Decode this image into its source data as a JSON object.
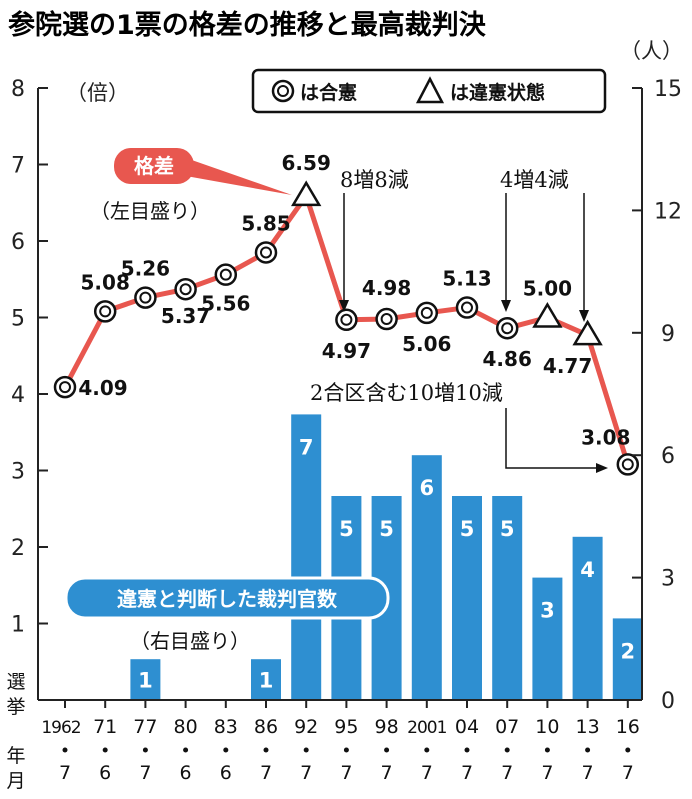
{
  "title": "参院選の1票の格差の推移と最高裁判決",
  "legend": {
    "gokan": "は合憲",
    "iken": "は違憲状態"
  },
  "left_axis": {
    "unit": "（倍）",
    "note": "（左目盛り）",
    "tag": "格差",
    "ticks": [
      "0",
      "1",
      "2",
      "3",
      "4",
      "5",
      "6",
      "7",
      "8"
    ]
  },
  "right_axis": {
    "unit": "（人）",
    "note": "（右目盛り）",
    "tag": "違憲と判断した裁判官数",
    "ticks": [
      "0",
      "3",
      "6",
      "9",
      "12",
      "15"
    ]
  },
  "x_axis_label": [
    "選",
    "挙",
    "年",
    "月"
  ],
  "annotations": {
    "a1992_95": "8増8減",
    "a2007_10": "4増4減",
    "a2013_16": "2合区含む10増10減"
  },
  "chart_data": [
    {
      "type": "line",
      "title": "参院選の1票の格差の推移と最高裁判決",
      "x_labels": [
        "1962",
        "71",
        "77",
        "80",
        "83",
        "86",
        "92",
        "95",
        "98",
        "2001",
        "04",
        "07",
        "10",
        "13",
        "16"
      ],
      "x_months": [
        "7",
        "6",
        "7",
        "6",
        "6",
        "7",
        "7",
        "7",
        "7",
        "7",
        "7",
        "7",
        "7",
        "7",
        "7"
      ],
      "ylabel": "（倍）",
      "ylim": [
        0,
        8
      ],
      "series": [
        {
          "name": "格差",
          "values": [
            4.09,
            5.08,
            5.26,
            5.37,
            5.56,
            5.85,
            6.59,
            4.97,
            4.98,
            5.06,
            5.13,
            4.86,
            5.0,
            4.77,
            3.08
          ]
        }
      ],
      "markers": [
        "合憲",
        "合憲",
        "合憲",
        "合憲",
        "合憲",
        "合憲",
        "違憲状態",
        "合憲",
        "合憲",
        "合憲",
        "合憲",
        "合憲",
        "違憲状態",
        "違憲状態",
        "合憲"
      ],
      "value_labels": [
        "4.09",
        "5.08",
        "5.26",
        "5.37",
        "5.56",
        "5.85",
        "6.59",
        "4.97",
        "4.98",
        "5.06",
        "5.13",
        "4.86",
        "5.00",
        "4.77",
        "3.08"
      ],
      "line_color": "#e8574f"
    },
    {
      "type": "bar",
      "x_labels": [
        "1962",
        "71",
        "77",
        "80",
        "83",
        "86",
        "92",
        "95",
        "98",
        "2001",
        "04",
        "07",
        "10",
        "13",
        "16"
      ],
      "ylabel": "（人）",
      "ylim": [
        0,
        15
      ],
      "series": [
        {
          "name": "違憲と判断した裁判官数",
          "values": [
            0,
            0,
            1,
            0,
            0,
            1,
            7,
            5,
            5,
            6,
            5,
            5,
            3,
            4,
            2
          ]
        }
      ],
      "bar_color": "#2e8fd1"
    }
  ]
}
